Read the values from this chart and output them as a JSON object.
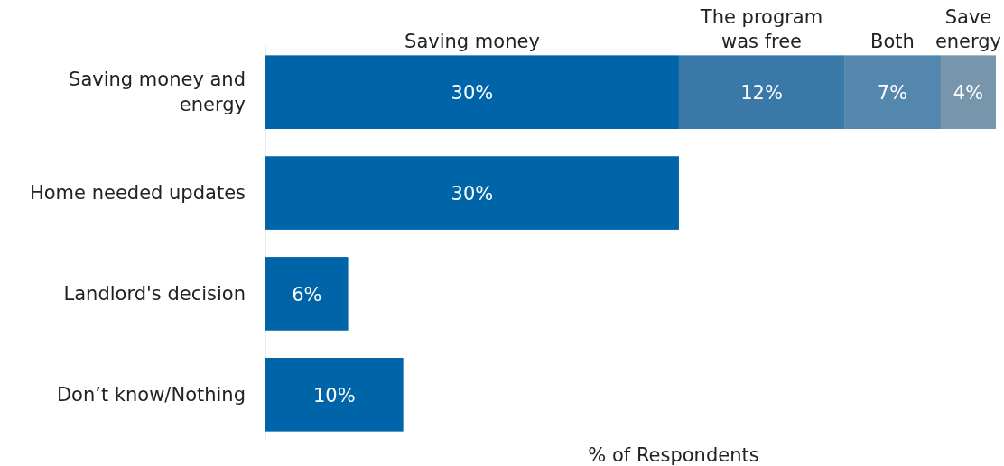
{
  "chart_data": {
    "type": "bar",
    "orientation": "horizontal",
    "stacked": true,
    "xlabel": "% of Respondents",
    "categories": [
      "Saving money and energy",
      "Home needed updates",
      "Landlord's decision",
      "Don’t know/Nothing"
    ],
    "series": [
      {
        "name": "Saving money",
        "color": "#0064a8",
        "values": [
          30,
          30,
          6,
          10
        ],
        "value_labels": [
          "30%",
          "30%",
          "6%",
          "10%"
        ]
      },
      {
        "name": "The program was free",
        "color": "#3a78a8",
        "values": [
          12,
          null,
          null,
          null
        ],
        "value_labels": [
          "12%",
          null,
          null,
          null
        ]
      },
      {
        "name": "Both",
        "color": "#5487ad",
        "values": [
          7,
          null,
          null,
          null
        ],
        "value_labels": [
          "7%",
          null,
          null,
          null
        ]
      },
      {
        "name": "Save energy",
        "color": "#7795ab",
        "values": [
          4,
          null,
          null,
          null
        ],
        "value_labels": [
          "4%",
          null,
          null,
          null
        ]
      }
    ]
  }
}
